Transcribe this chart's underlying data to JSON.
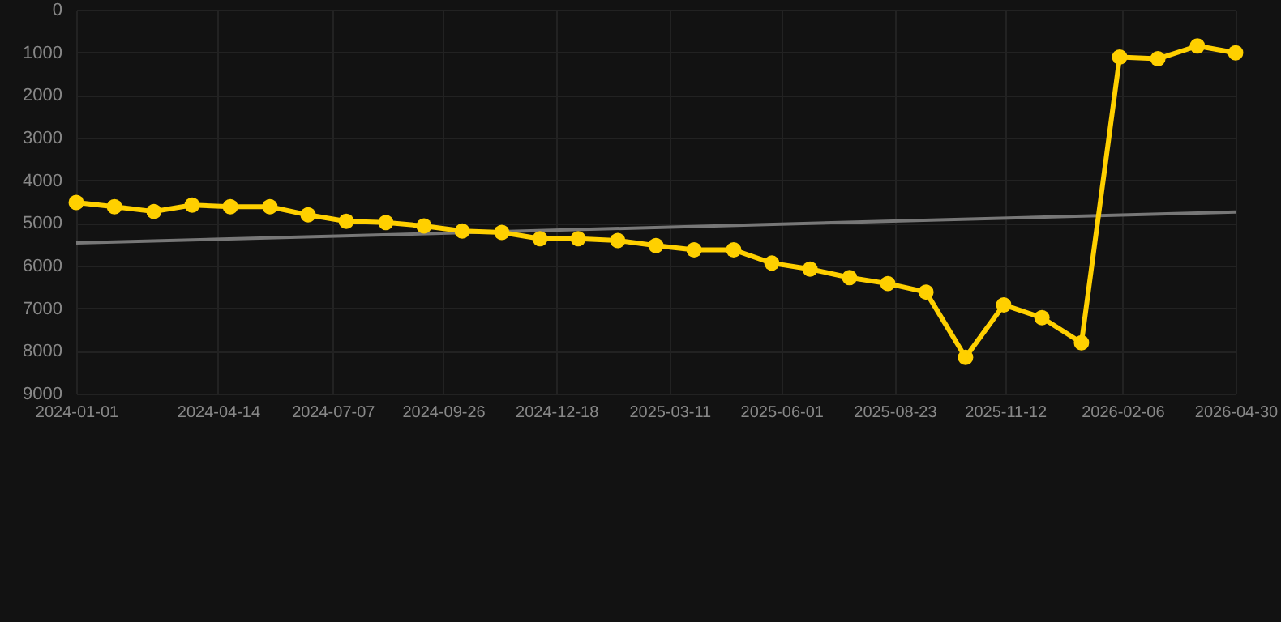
{
  "chart_data": {
    "type": "line",
    "x": [
      "2024-01-01",
      "2024-01-29",
      "2024-02-27",
      "2024-03-26",
      "2024-04-23",
      "2024-05-22",
      "2024-06-19",
      "2024-07-17",
      "2024-08-15",
      "2024-09-12",
      "2024-10-10",
      "2024-11-08",
      "2024-12-06",
      "2025-01-03",
      "2025-02-01",
      "2025-03-01",
      "2025-03-29",
      "2025-04-27",
      "2025-05-25",
      "2025-06-22",
      "2025-07-21",
      "2025-08-18",
      "2025-09-15",
      "2025-10-14",
      "2025-11-11",
      "2025-12-09",
      "2026-01-07",
      "2026-02-04",
      "2026-03-04",
      "2026-04-02",
      "2026-04-30"
    ],
    "series": [
      {
        "color": "#ffd000",
        "values": [
          4520,
          4620,
          4730,
          4580,
          4620,
          4620,
          4810,
          4960,
          4990,
          5070,
          5190,
          5220,
          5370,
          5370,
          5410,
          5530,
          5630,
          5630,
          5940,
          6080,
          6280,
          6420,
          6620,
          8150,
          6920,
          7220,
          7810,
          1110,
          1150,
          850,
          1010
        ],
        "marker": "circle"
      },
      {
        "type": "line",
        "color": "#777777",
        "x": [
          "2024-01-01",
          "2026-04-30"
        ],
        "values": [
          5470,
          4740
        ],
        "marker": "none"
      }
    ],
    "xlim": [
      "2024-01-01",
      "2026-04-30"
    ],
    "xticks": [
      "2024-01-01",
      "2024-04-14",
      "2024-07-07",
      "2024-09-26",
      "2024-12-18",
      "2025-03-11",
      "2025-06-01",
      "2025-08-23",
      "2025-11-12",
      "2026-02-06",
      "2026-04-30"
    ],
    "ylim": [
      9000,
      0
    ],
    "yticks": [
      0,
      1000,
      2000,
      3000,
      4000,
      5000,
      6000,
      7000,
      8000,
      9000
    ],
    "grid": true
  }
}
